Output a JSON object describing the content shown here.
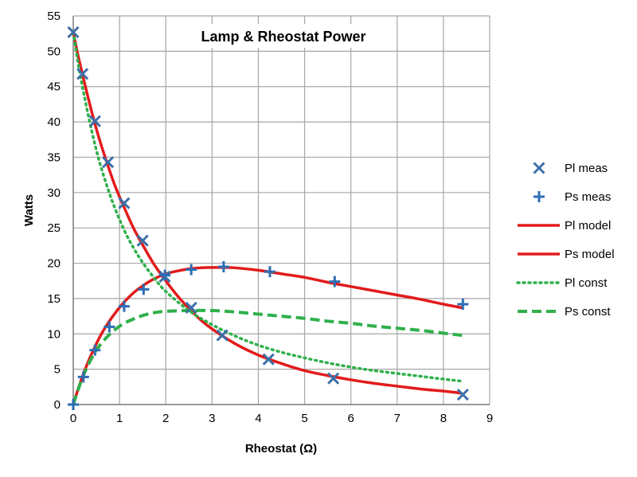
{
  "chart_data": {
    "type": "scatter",
    "title": "Lamp & Rheostat Power",
    "xlabel": "Rheostat (Ω)",
    "ylabel": "Watts",
    "xlim": [
      0,
      9
    ],
    "ylim": [
      0,
      55
    ],
    "x_ticks": [
      "0",
      "1",
      "2",
      "3",
      "4",
      "5",
      "6",
      "7",
      "8",
      "9"
    ],
    "y_ticks": [
      "0",
      "5",
      "10",
      "15",
      "20",
      "25",
      "30",
      "35",
      "40",
      "45",
      "50",
      "55"
    ],
    "grid": true,
    "legend_position": "right",
    "series": [
      {
        "name": "Pl meas",
        "kind": "marker",
        "marker": "x",
        "color": "#3d6fa8",
        "points": [
          [
            0,
            52.7
          ],
          [
            0.2,
            46.8
          ],
          [
            0.47,
            40.1
          ],
          [
            0.75,
            34.3
          ],
          [
            1.1,
            28.5
          ],
          [
            1.5,
            23.2
          ],
          [
            1.98,
            18.1
          ],
          [
            2.55,
            13.7
          ],
          [
            3.22,
            9.8
          ],
          [
            4.22,
            6.4
          ],
          [
            5.62,
            3.7
          ],
          [
            8.42,
            1.4
          ]
        ]
      },
      {
        "name": "Ps meas",
        "kind": "marker",
        "marker": "+",
        "color": "#2e6db4",
        "points": [
          [
            0,
            0
          ],
          [
            0.22,
            3.9
          ],
          [
            0.47,
            7.7
          ],
          [
            0.78,
            11.0
          ],
          [
            1.1,
            13.9
          ],
          [
            1.52,
            16.3
          ],
          [
            1.98,
            18.3
          ],
          [
            2.55,
            19.1
          ],
          [
            3.25,
            19.5
          ],
          [
            4.25,
            18.8
          ],
          [
            5.65,
            17.4
          ],
          [
            8.42,
            14.2
          ]
        ]
      },
      {
        "name": "Pl model",
        "kind": "line",
        "style": "solid",
        "color": "#e21b1b",
        "points": [
          [
            0,
            52.7
          ],
          [
            0.1,
            49.5
          ],
          [
            0.2,
            46.7
          ],
          [
            0.3,
            44.0
          ],
          [
            0.4,
            41.4
          ],
          [
            0.5,
            39.0
          ],
          [
            0.6,
            36.8
          ],
          [
            0.75,
            33.8
          ],
          [
            0.9,
            31.0
          ],
          [
            1.1,
            27.9
          ],
          [
            1.3,
            25.0
          ],
          [
            1.5,
            22.6
          ],
          [
            1.75,
            19.8
          ],
          [
            2.0,
            17.5
          ],
          [
            2.25,
            15.4
          ],
          [
            2.5,
            13.6
          ],
          [
            2.75,
            12.0
          ],
          [
            3.0,
            10.7
          ],
          [
            3.5,
            8.6
          ],
          [
            4.0,
            7.0
          ],
          [
            4.5,
            5.8
          ],
          [
            5.0,
            4.8
          ],
          [
            5.5,
            4.1
          ],
          [
            6.0,
            3.5
          ],
          [
            6.5,
            3.0
          ],
          [
            7.0,
            2.6
          ],
          [
            7.5,
            2.2
          ],
          [
            8.0,
            1.9
          ],
          [
            8.4,
            1.6
          ]
        ]
      },
      {
        "name": "Ps model",
        "kind": "line",
        "style": "solid",
        "color": "#e21b1b",
        "points": [
          [
            0,
            0
          ],
          [
            0.1,
            2.1
          ],
          [
            0.2,
            4.0
          ],
          [
            0.3,
            5.7
          ],
          [
            0.4,
            7.2
          ],
          [
            0.5,
            8.6
          ],
          [
            0.6,
            9.9
          ],
          [
            0.75,
            11.5
          ],
          [
            0.9,
            12.9
          ],
          [
            1.1,
            14.5
          ],
          [
            1.3,
            15.8
          ],
          [
            1.5,
            16.8
          ],
          [
            1.75,
            17.8
          ],
          [
            2.0,
            18.5
          ],
          [
            2.25,
            18.9
          ],
          [
            2.5,
            19.2
          ],
          [
            2.75,
            19.35
          ],
          [
            3.0,
            19.4
          ],
          [
            3.25,
            19.4
          ],
          [
            3.5,
            19.35
          ],
          [
            4.0,
            19.0
          ],
          [
            4.5,
            18.5
          ],
          [
            5.0,
            18.0
          ],
          [
            5.5,
            17.3
          ],
          [
            6.0,
            16.7
          ],
          [
            6.5,
            16.1
          ],
          [
            7.0,
            15.5
          ],
          [
            7.5,
            14.9
          ],
          [
            8.0,
            14.2
          ],
          [
            8.4,
            13.7
          ]
        ]
      },
      {
        "name": "Pl const",
        "kind": "line",
        "style": "dotted",
        "color": "#2fb04b",
        "points": [
          [
            0,
            52.7
          ],
          [
            0.1,
            48.5
          ],
          [
            0.2,
            44.9
          ],
          [
            0.3,
            41.7
          ],
          [
            0.4,
            38.7
          ],
          [
            0.5,
            36.0
          ],
          [
            0.6,
            33.6
          ],
          [
            0.75,
            30.5
          ],
          [
            0.9,
            27.8
          ],
          [
            1.1,
            24.7
          ],
          [
            1.3,
            22.2
          ],
          [
            1.5,
            20.1
          ],
          [
            1.75,
            17.9
          ],
          [
            2.0,
            16.0
          ],
          [
            2.5,
            13.3
          ],
          [
            3.0,
            11.3
          ],
          [
            3.5,
            9.7
          ],
          [
            4.0,
            8.4
          ],
          [
            4.5,
            7.4
          ],
          [
            5.0,
            6.6
          ],
          [
            5.5,
            5.9
          ],
          [
            6.0,
            5.3
          ],
          [
            6.5,
            4.8
          ],
          [
            7.0,
            4.4
          ],
          [
            7.5,
            4.0
          ],
          [
            8.0,
            3.6
          ],
          [
            8.4,
            3.3
          ]
        ]
      },
      {
        "name": "Ps const",
        "kind": "line",
        "style": "dashed",
        "color": "#2fb04b",
        "points": [
          [
            0,
            0
          ],
          [
            0.1,
            2.0
          ],
          [
            0.2,
            3.8
          ],
          [
            0.3,
            5.3
          ],
          [
            0.4,
            6.6
          ],
          [
            0.5,
            7.7
          ],
          [
            0.6,
            8.6
          ],
          [
            0.75,
            9.7
          ],
          [
            0.9,
            10.6
          ],
          [
            1.1,
            11.5
          ],
          [
            1.3,
            12.1
          ],
          [
            1.5,
            12.6
          ],
          [
            1.75,
            13.0
          ],
          [
            2.0,
            13.2
          ],
          [
            2.5,
            13.3
          ],
          [
            3.0,
            13.3
          ],
          [
            3.5,
            13.1
          ],
          [
            4.0,
            12.8
          ],
          [
            4.5,
            12.5
          ],
          [
            5.0,
            12.2
          ],
          [
            5.5,
            11.8
          ],
          [
            6.0,
            11.5
          ],
          [
            6.5,
            11.1
          ],
          [
            7.0,
            10.8
          ],
          [
            7.5,
            10.5
          ],
          [
            8.0,
            10.1
          ],
          [
            8.4,
            9.8
          ]
        ]
      }
    ]
  }
}
